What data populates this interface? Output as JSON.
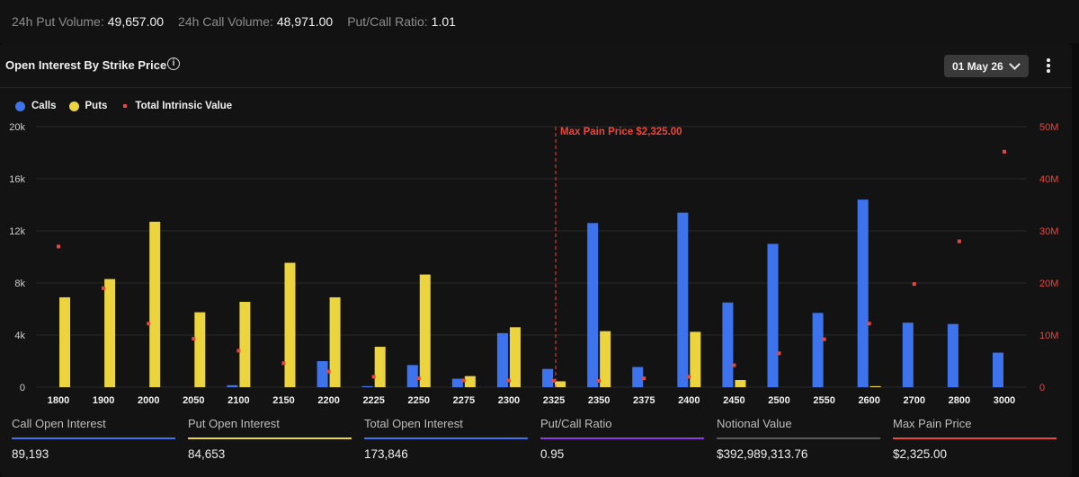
{
  "topbar": {
    "put_volume_label": "24h Put Volume:",
    "put_volume_value": "49,657.00",
    "call_volume_label": "24h Call Volume:",
    "call_volume_value": "48,971.00",
    "ratio_label": "Put/Call Ratio:",
    "ratio_value": "1.01"
  },
  "panel": {
    "title": "Open Interest By Strike Price",
    "info_icon": "info-icon",
    "date_select": "01 May 26",
    "menu_icon": "kebab-menu-icon"
  },
  "legend": {
    "calls": "Calls",
    "puts": "Puts",
    "intrinsic": "Total Intrinsic Value"
  },
  "colors": {
    "calls": "#3d74ee",
    "puts": "#ecd43e",
    "intrinsic": "#e8473f",
    "maxpain": "#e8473f"
  },
  "chart_data": {
    "type": "bar",
    "categories": [
      "1800",
      "1900",
      "2000",
      "2050",
      "2100",
      "2150",
      "2200",
      "2225",
      "2250",
      "2275",
      "2300",
      "2325",
      "2350",
      "2375",
      "2400",
      "2450",
      "2500",
      "2550",
      "2600",
      "2700",
      "2800",
      "3000"
    ],
    "series": [
      {
        "name": "Calls",
        "values": [
          0,
          0,
          0,
          0,
          150,
          0,
          2000,
          80,
          1700,
          650,
          4150,
          1400,
          12600,
          1550,
          13400,
          6500,
          11000,
          5700,
          14400,
          4950,
          4850,
          2650
        ]
      },
      {
        "name": "Puts",
        "values": [
          6900,
          8300,
          12700,
          5750,
          6550,
          9550,
          6900,
          3100,
          8650,
          850,
          4600,
          450,
          4300,
          0,
          4250,
          550,
          0,
          0,
          80,
          0,
          0,
          0
        ]
      },
      {
        "name": "Total Intrinsic Value",
        "axis": "right",
        "values": [
          27000000,
          19000000,
          12200000,
          9300000,
          7000000,
          4600000,
          3000000,
          2000000,
          1700000,
          1300000,
          1300000,
          1200000,
          1200000,
          1700000,
          2000000,
          4200000,
          6500000,
          9200000,
          12200000,
          19800000,
          28000000,
          45200000
        ]
      }
    ],
    "y_left": {
      "ticks": [
        "0",
        "4k",
        "8k",
        "12k",
        "16k",
        "20k"
      ],
      "range": [
        0,
        20000
      ]
    },
    "y_right": {
      "ticks": [
        "0",
        "10M",
        "20M",
        "30M",
        "40M",
        "50M"
      ],
      "range": [
        0,
        50000000
      ]
    },
    "annotation": {
      "category": "2325",
      "label": "Max Pain Price $2,325.00"
    },
    "grid": true,
    "legend_position": "top-left"
  },
  "stats": [
    {
      "label": "Call Open Interest",
      "value": "89,193",
      "color": "#3d74ee"
    },
    {
      "label": "Put Open Interest",
      "value": "84,653",
      "color": "#ecd43e"
    },
    {
      "label": "Total Open Interest",
      "value": "173,846",
      "color": "#3d74ee"
    },
    {
      "label": "Put/Call Ratio",
      "value": "0.95",
      "color": "#8a3ee0"
    },
    {
      "label": "Notional Value",
      "value": "$392,989,313.76",
      "color": "#5a5a5a"
    },
    {
      "label": "Max Pain Price",
      "value": "$2,325.00",
      "color": "#e8473f"
    }
  ]
}
